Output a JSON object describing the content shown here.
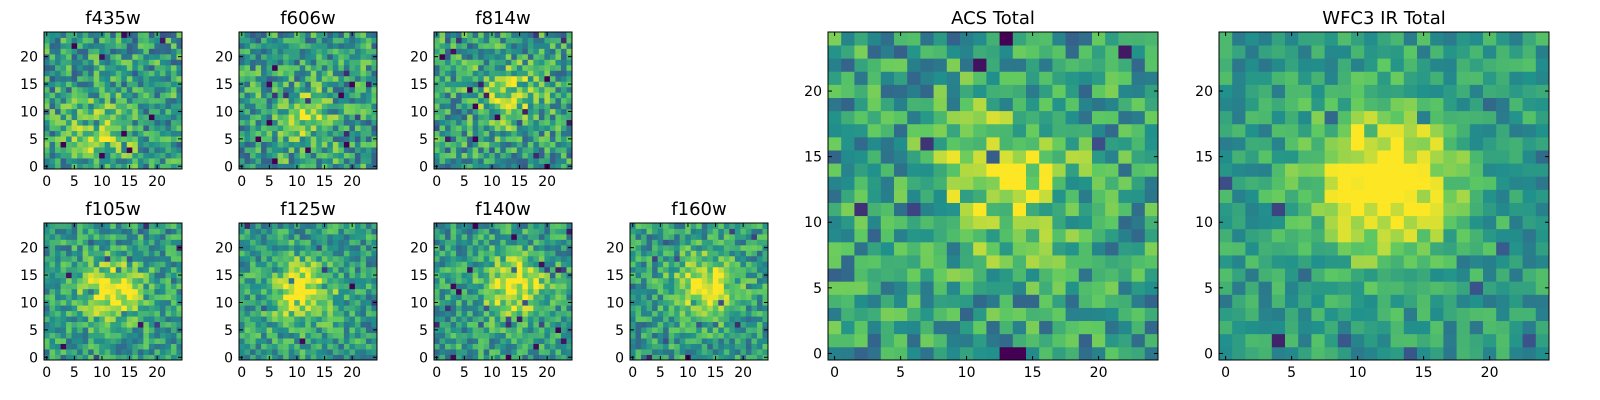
{
  "figure": {
    "colormap": [
      "#440154",
      "#3b528b",
      "#21918c",
      "#5ec962",
      "#fde725"
    ]
  },
  "chart_data": [
    {
      "type": "heatmap",
      "title": "f435w",
      "grid": [
        25,
        25
      ],
      "xlim": [
        0,
        24
      ],
      "ylim": [
        0,
        24
      ],
      "xticks": [
        "0",
        "5",
        "10",
        "15",
        "20"
      ],
      "yticks": [
        "0",
        "5",
        "10",
        "15",
        "20"
      ],
      "seed": 11,
      "blob": [
        10,
        6
      ],
      "blob_strength": 0.25,
      "noise": 1.0
    },
    {
      "type": "heatmap",
      "title": "f606w",
      "grid": [
        25,
        25
      ],
      "xlim": [
        0,
        24
      ],
      "ylim": [
        0,
        24
      ],
      "xticks": [
        "0",
        "5",
        "10",
        "15",
        "20"
      ],
      "yticks": [
        "0",
        "5",
        "10",
        "15",
        "20"
      ],
      "seed": 23,
      "blob": [
        11,
        9
      ],
      "blob_strength": 0.25,
      "noise": 1.0
    },
    {
      "type": "heatmap",
      "title": "f814w",
      "grid": [
        25,
        25
      ],
      "xlim": [
        0,
        24
      ],
      "ylim": [
        0,
        24
      ],
      "xticks": [
        "0",
        "5",
        "10",
        "15",
        "20"
      ],
      "yticks": [
        "0",
        "5",
        "10",
        "15",
        "20"
      ],
      "seed": 37,
      "blob": [
        13,
        13
      ],
      "blob_strength": 0.3,
      "noise": 1.0
    },
    {
      "type": "heatmap",
      "title": "f105w",
      "grid": [
        25,
        25
      ],
      "xlim": [
        0,
        24
      ],
      "ylim": [
        0,
        24
      ],
      "xticks": [
        "0",
        "5",
        "10",
        "15",
        "20"
      ],
      "yticks": [
        "0",
        "5",
        "10",
        "15",
        "20"
      ],
      "seed": 41,
      "blob": [
        12,
        12
      ],
      "blob_strength": 0.45,
      "noise": 0.8
    },
    {
      "type": "heatmap",
      "title": "f125w",
      "grid": [
        25,
        25
      ],
      "xlim": [
        0,
        24
      ],
      "ylim": [
        0,
        24
      ],
      "xticks": [
        "0",
        "5",
        "10",
        "15",
        "20"
      ],
      "yticks": [
        "0",
        "5",
        "10",
        "15",
        "20"
      ],
      "seed": 53,
      "blob": [
        11,
        12
      ],
      "blob_strength": 0.45,
      "noise": 0.8
    },
    {
      "type": "heatmap",
      "title": "f140w",
      "grid": [
        25,
        25
      ],
      "xlim": [
        0,
        24
      ],
      "ylim": [
        0,
        24
      ],
      "xticks": [
        "0",
        "5",
        "10",
        "15",
        "20"
      ],
      "yticks": [
        "0",
        "5",
        "10",
        "15",
        "20"
      ],
      "seed": 67,
      "blob": [
        14,
        13
      ],
      "blob_strength": 0.45,
      "noise": 0.8
    },
    {
      "type": "heatmap",
      "title": "f160w",
      "grid": [
        25,
        25
      ],
      "xlim": [
        0,
        24
      ],
      "ylim": [
        0,
        24
      ],
      "xticks": [
        "0",
        "5",
        "10",
        "15",
        "20"
      ],
      "yticks": [
        "0",
        "5",
        "10",
        "15",
        "20"
      ],
      "seed": 79,
      "blob": [
        13,
        13
      ],
      "blob_strength": 0.45,
      "noise": 0.8
    },
    {
      "type": "heatmap",
      "title": "ACS Total",
      "grid": [
        25,
        25
      ],
      "xlim": [
        0,
        24
      ],
      "ylim": [
        0,
        24
      ],
      "xticks": [
        "0",
        "5",
        "10",
        "15",
        "20"
      ],
      "yticks": [
        "0",
        "5",
        "10",
        "15",
        "20"
      ],
      "seed": 97,
      "blob": [
        13,
        13
      ],
      "blob_strength": 0.35,
      "noise": 0.9
    },
    {
      "type": "heatmap",
      "title": "WFC3 IR Total",
      "grid": [
        25,
        25
      ],
      "xlim": [
        0,
        24
      ],
      "ylim": [
        0,
        24
      ],
      "xticks": [
        "0",
        "5",
        "10",
        "15",
        "20"
      ],
      "yticks": [
        "0",
        "5",
        "10",
        "15",
        "20"
      ],
      "seed": 131,
      "blob": [
        12,
        13
      ],
      "blob_strength": 0.6,
      "noise": 0.6
    }
  ]
}
